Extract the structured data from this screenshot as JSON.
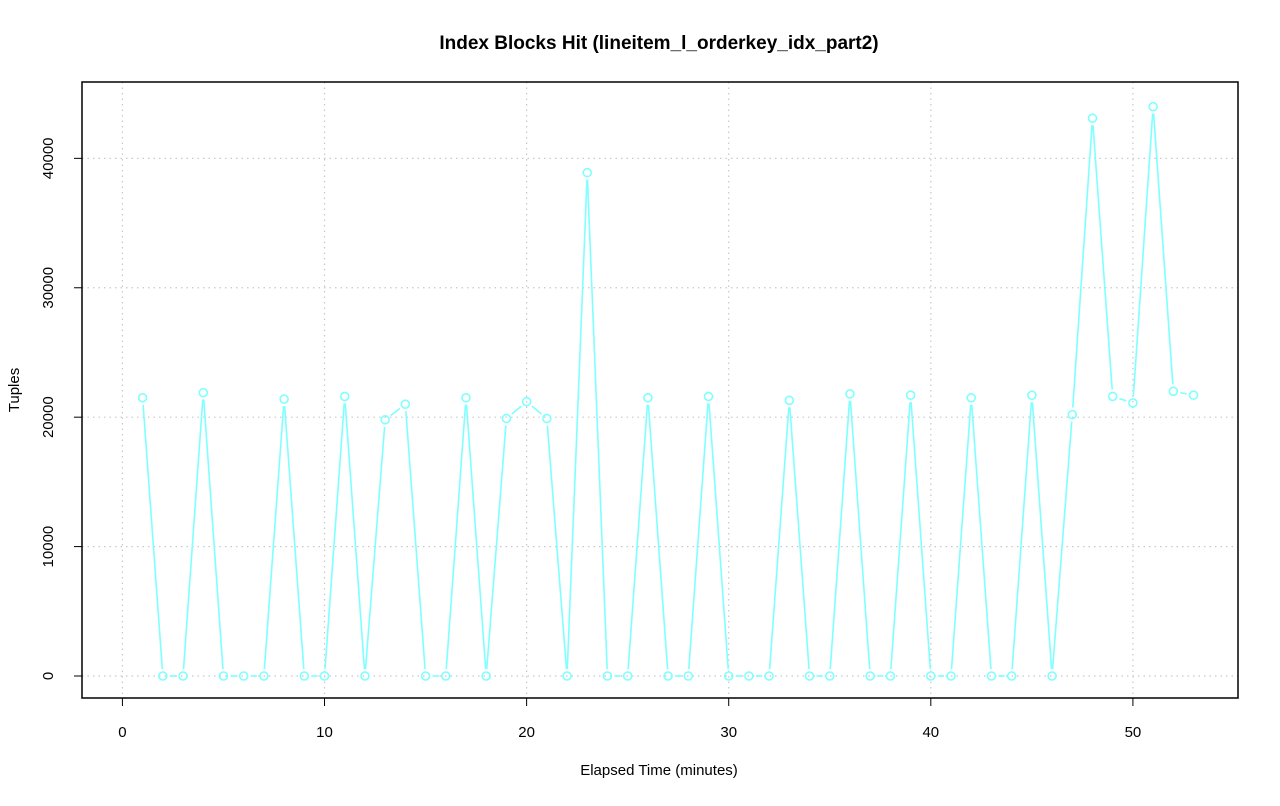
{
  "chart_data": {
    "type": "line",
    "title": "Index Blocks Hit (lineitem_l_orderkey_idx_part2)",
    "xlabel": "Elapsed Time (minutes)",
    "ylabel": "Tuples",
    "xlim": [
      -2,
      55.2
    ],
    "ylim": [
      -1700,
      45900
    ],
    "x_ticks": [
      0,
      10,
      20,
      30,
      40,
      50
    ],
    "y_ticks": [
      0,
      10000,
      20000,
      30000,
      40000
    ],
    "x_tick_labels": [
      "0",
      "10",
      "20",
      "30",
      "40",
      "50"
    ],
    "y_tick_labels": [
      "0",
      "10000",
      "20000",
      "30000",
      "40000"
    ],
    "grid": true,
    "legend": "none",
    "series": [
      {
        "color": "#7fffff",
        "marker": "open-circle",
        "x": [
          1,
          2,
          3,
          4,
          5,
          6,
          7,
          8,
          9,
          10,
          11,
          12,
          13,
          14,
          15,
          16,
          17,
          18,
          19,
          20,
          21,
          22,
          23,
          24,
          25,
          26,
          27,
          28,
          29,
          30,
          31,
          32,
          33,
          34,
          35,
          36,
          37,
          38,
          39,
          40,
          41,
          42,
          43,
          44,
          45,
          46,
          47,
          48,
          49,
          50,
          51,
          52,
          53
        ],
        "y": [
          21500,
          0,
          0,
          21900,
          0,
          0,
          0,
          21400,
          0,
          0,
          21600,
          0,
          19800,
          21000,
          0,
          0,
          21500,
          0,
          19900,
          21200,
          19900,
          0,
          38900,
          0,
          0,
          21500,
          0,
          0,
          21600,
          0,
          0,
          0,
          21300,
          0,
          0,
          21800,
          0,
          0,
          21700,
          0,
          0,
          21500,
          0,
          0,
          21700,
          0,
          20200,
          43100,
          21600,
          21100,
          44000,
          22000,
          21700
        ]
      }
    ]
  }
}
